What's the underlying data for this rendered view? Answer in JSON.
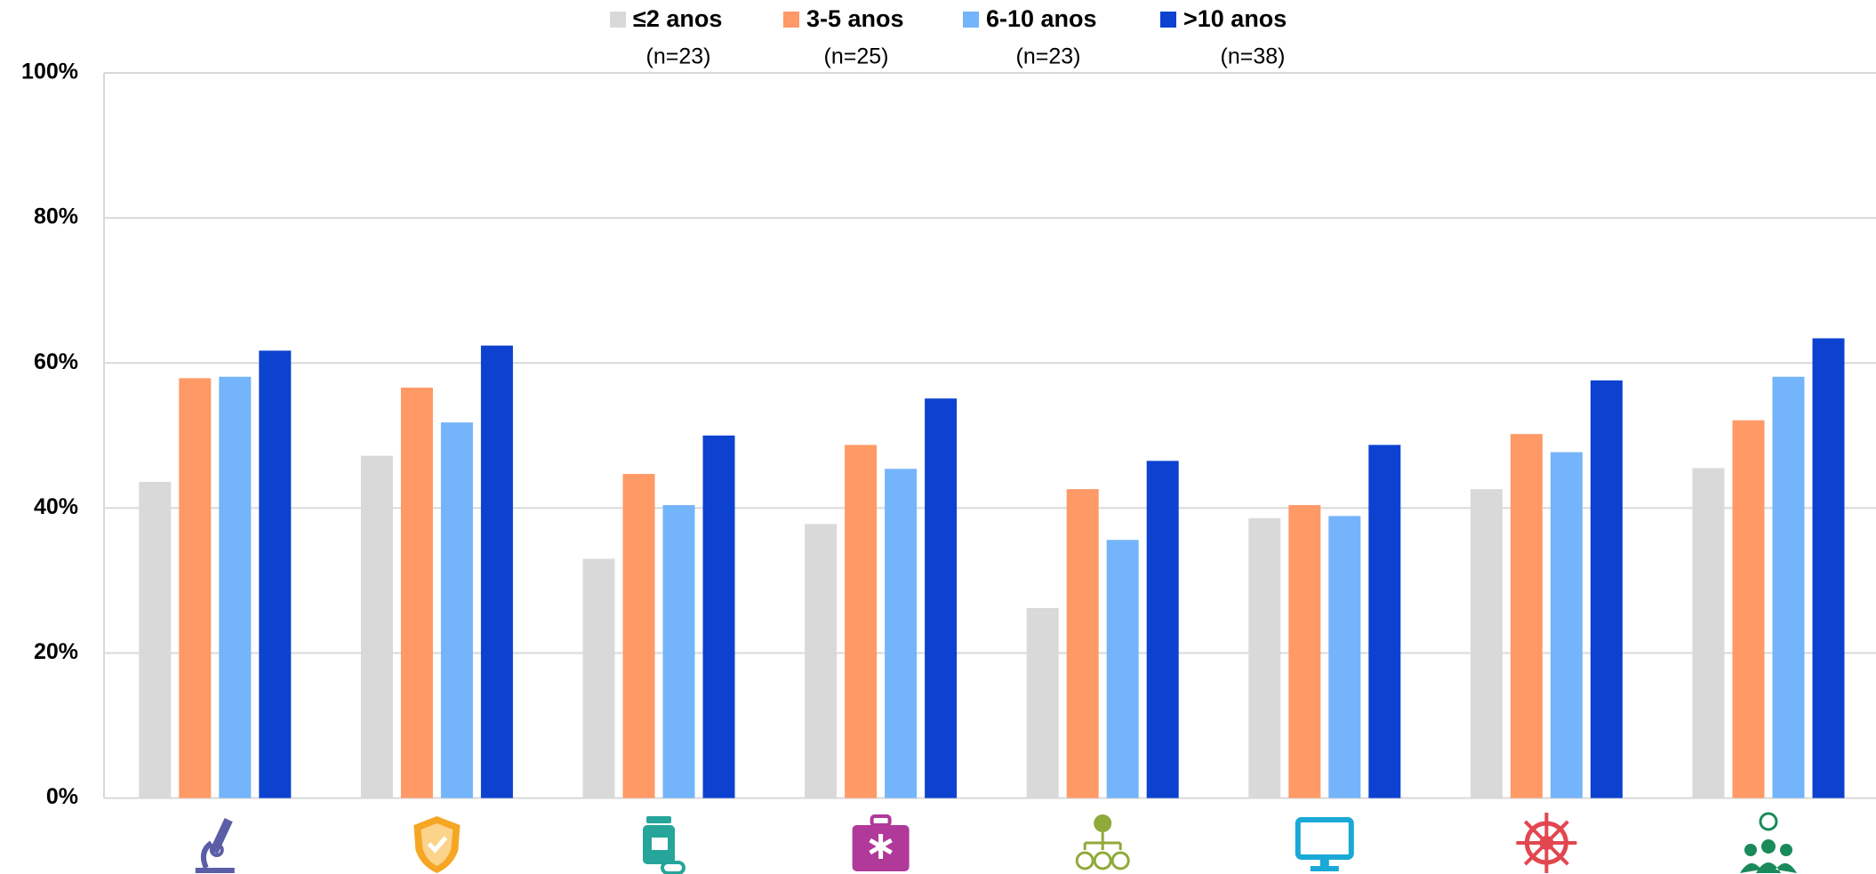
{
  "chart_data": {
    "type": "bar",
    "categories": [
      null,
      null,
      null,
      null,
      null,
      null,
      null,
      null
    ],
    "series": [
      {
        "name": "≤2 anos",
        "sample": "(n=23)",
        "color": "#d9d9d9",
        "values": [
          43.6,
          47.2,
          33.0,
          37.8,
          26.2,
          38.6,
          42.6,
          45.5
        ]
      },
      {
        "name": "3-5 anos",
        "sample": "(n=25)",
        "color": "#ff9966",
        "values": [
          57.9,
          56.6,
          44.7,
          48.7,
          42.6,
          40.4,
          50.2,
          52.1
        ]
      },
      {
        "name": "6-10 anos",
        "sample": "(n=23)",
        "color": "#74b4fa",
        "values": [
          58.1,
          51.8,
          40.4,
          45.4,
          35.6,
          38.9,
          47.7,
          58.1
        ]
      },
      {
        "name": ">10 anos",
        "sample": "(n=38)",
        "color": "#0d42d0",
        "values": [
          61.7,
          62.4,
          50.0,
          55.1,
          46.5,
          48.7,
          57.6,
          63.4
        ]
      }
    ],
    "ylim": [
      0,
      100
    ],
    "yticks": [
      {
        "value": 0,
        "label": "0%"
      },
      {
        "value": 20,
        "label": "20%"
      },
      {
        "value": 40,
        "label": "40%"
      },
      {
        "value": 60,
        "label": "60%"
      },
      {
        "value": 80,
        "label": "80%"
      },
      {
        "value": 100,
        "label": "100%"
      }
    ],
    "grid": true,
    "legend": "top"
  }
}
